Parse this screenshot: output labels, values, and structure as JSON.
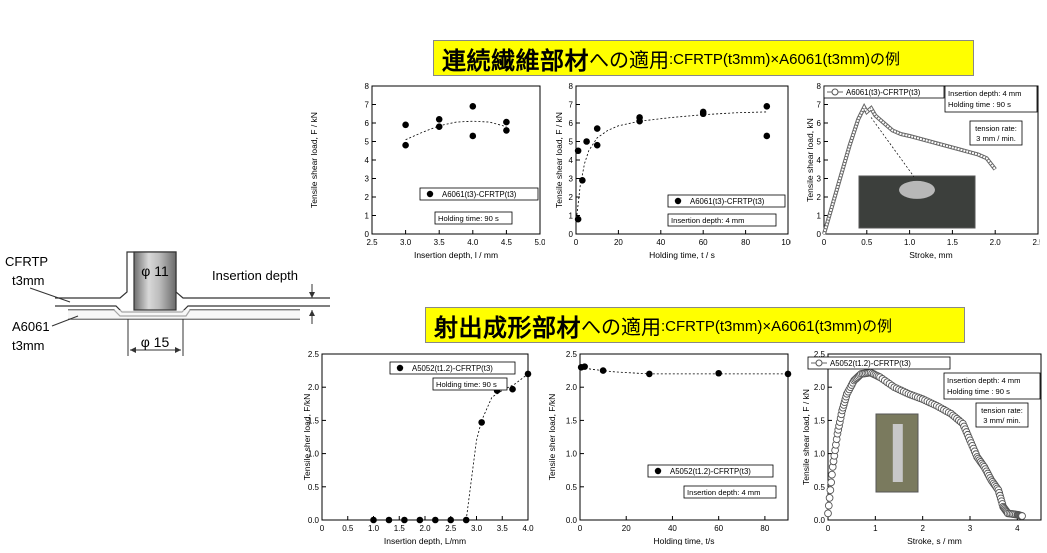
{
  "banner_top": {
    "main": "連続繊維部材",
    "particle": "への適用",
    "sub": ":CFRTP(t3mm)×A6061(t3mm)の例"
  },
  "banner_bottom": {
    "main": "射出成形部材",
    "particle": "への適用",
    "sub": ":CFRTP(t3mm)×A6061(t3mm)の例"
  },
  "diagram": {
    "label_cfrtp": "CFRTP",
    "label_cfrtp_t": "t3mm",
    "label_a6061": "A6061",
    "label_a6061_t": "t3mm",
    "label_phi11": "φ 11",
    "label_phi15": "φ 15",
    "label_insertion": "Insertion depth"
  },
  "chart_data": [
    {
      "type": "scatter",
      "ylabel": "Tensile shear load, F / kN",
      "xlabel": "Insertion depth, l / mm",
      "xlim": [
        2.5,
        5.0
      ],
      "ylim": [
        0,
        8
      ],
      "xticks": [
        "2.5",
        "3.0",
        "3.5",
        "4.0",
        "4.5",
        "5.0"
      ],
      "yticks": [
        "0",
        "1",
        "2",
        "3",
        "4",
        "5",
        "6",
        "7",
        "8"
      ],
      "series": [
        {
          "name": "A6061(t3)-CFRTP(t3)",
          "points": [
            [
              3.0,
              5.9
            ],
            [
              3.0,
              4.8
            ],
            [
              3.5,
              6.2
            ],
            [
              3.5,
              5.8
            ],
            [
              4.0,
              6.9
            ],
            [
              4.0,
              5.3
            ],
            [
              4.5,
              6.05
            ],
            [
              4.5,
              5.6
            ]
          ]
        }
      ],
      "trend": [
        [
          3.0,
          5.1
        ],
        [
          3.25,
          5.5
        ],
        [
          3.5,
          5.85
        ],
        [
          3.75,
          6.05
        ],
        [
          4.0,
          6.1
        ],
        [
          4.25,
          6.05
        ],
        [
          4.5,
          5.8
        ]
      ],
      "annotations": [
        "Holding time: 90 s"
      ]
    },
    {
      "type": "scatter",
      "ylabel": "Tensile shear load, F / kN",
      "xlabel": "Holding time, t / s",
      "xlim": [
        0,
        100
      ],
      "ylim": [
        0,
        8
      ],
      "xticks": [
        "0",
        "20",
        "40",
        "60",
        "80",
        "100"
      ],
      "yticks": [
        "0",
        "1",
        "2",
        "3",
        "4",
        "5",
        "6",
        "7",
        "8"
      ],
      "series": [
        {
          "name": "A6061(t3)-CFRTP(t3)",
          "points": [
            [
              1,
              0.8
            ],
            [
              1,
              4.5
            ],
            [
              3,
              2.9
            ],
            [
              5,
              5.0
            ],
            [
              10,
              5.7
            ],
            [
              10,
              4.8
            ],
            [
              30,
              6.3
            ],
            [
              30,
              6.1
            ],
            [
              60,
              6.6
            ],
            [
              60,
              6.5
            ],
            [
              90,
              6.9
            ],
            [
              90,
              5.3
            ]
          ]
        }
      ],
      "trend": [
        [
          0,
          0.6
        ],
        [
          2,
          2.6
        ],
        [
          4,
          3.8
        ],
        [
          6,
          4.5
        ],
        [
          10,
          5.2
        ],
        [
          15,
          5.6
        ],
        [
          20,
          5.85
        ],
        [
          30,
          6.1
        ],
        [
          45,
          6.3
        ],
        [
          60,
          6.45
        ],
        [
          75,
          6.55
        ],
        [
          90,
          6.6
        ]
      ],
      "annotations": [
        "Insertion depth: 4 mm"
      ]
    },
    {
      "type": "line",
      "ylabel": "Tensile shear load, kN",
      "xlabel": "Stroke, mm",
      "xlim": [
        0,
        2.5
      ],
      "ylim": [
        0,
        8
      ],
      "xticks": [
        "0",
        "0.5",
        "1.0",
        "1.5",
        "2.0",
        "2.5"
      ],
      "yticks": [
        "0",
        "1",
        "2",
        "3",
        "4",
        "5",
        "6",
        "7",
        "8"
      ],
      "series": [
        {
          "name": "A6061(t3)-CFRTP(t3)",
          "points": [
            [
              0,
              0
            ],
            [
              0.1,
              1.6
            ],
            [
              0.2,
              3.2
            ],
            [
              0.3,
              4.8
            ],
            [
              0.4,
              6.2
            ],
            [
              0.47,
              6.85
            ],
            [
              0.5,
              6.6
            ],
            [
              0.55,
              6.8
            ],
            [
              0.6,
              6.4
            ],
            [
              0.7,
              6.0
            ],
            [
              0.8,
              5.6
            ],
            [
              0.9,
              5.4
            ],
            [
              1.0,
              5.3
            ],
            [
              1.2,
              5.05
            ],
            [
              1.4,
              4.8
            ],
            [
              1.6,
              4.55
            ],
            [
              1.8,
              4.3
            ],
            [
              1.9,
              4.1
            ],
            [
              2.0,
              3.5
            ]
          ]
        }
      ],
      "annotations": [
        "Insertion depth: 4 mm",
        "Holding time   : 90 s",
        "tension rate:",
        "3 mm / min."
      ]
    },
    {
      "type": "scatter",
      "ylabel": "Tensile sher load, F/kN",
      "xlabel": "Insertion depth, L/mm",
      "xlim": [
        0,
        4.0
      ],
      "ylim": [
        0,
        2.5
      ],
      "xticks": [
        "0",
        "0.5",
        "1.0",
        "1.5",
        "2.0",
        "2.5",
        "3.0",
        "3.5",
        "4.0"
      ],
      "yticks": [
        "0.0",
        "0.5",
        "1.0",
        "1.5",
        "2.0",
        "2.5"
      ],
      "series": [
        {
          "name": "A5052(t1.2)-CFRTP(t3)",
          "points": [
            [
              1.0,
              0
            ],
            [
              1.3,
              0
            ],
            [
              1.6,
              0
            ],
            [
              1.9,
              0
            ],
            [
              2.2,
              0
            ],
            [
              2.5,
              0
            ],
            [
              2.8,
              0
            ],
            [
              3.1,
              1.47
            ],
            [
              3.4,
              1.95
            ],
            [
              3.7,
              1.97
            ],
            [
              4.0,
              2.2
            ]
          ]
        }
      ],
      "trend": [
        [
          2.8,
          0
        ],
        [
          2.9,
          0.6
        ],
        [
          3.0,
          1.2
        ],
        [
          3.1,
          1.5
        ],
        [
          3.3,
          1.85
        ],
        [
          3.5,
          1.95
        ],
        [
          3.75,
          2.05
        ],
        [
          4.0,
          2.2
        ]
      ],
      "annotations": [
        "Holding time: 90 s"
      ]
    },
    {
      "type": "scatter",
      "ylabel": "Tensile sher load, F/kN",
      "xlabel": "Holding time, t/s",
      "xlim": [
        0,
        90
      ],
      "ylim": [
        0,
        2.5
      ],
      "xticks": [
        "0",
        "20",
        "40",
        "60",
        "80"
      ],
      "yticks": [
        "0.0",
        "0.5",
        "1.0",
        "1.5",
        "2.0",
        "2.5"
      ],
      "series": [
        {
          "name": "A5052(t1.2)-CFRTP(t3)",
          "points": [
            [
              0.5,
              2.3
            ],
            [
              2,
              2.31
            ],
            [
              10,
              2.25
            ],
            [
              30,
              2.2
            ],
            [
              60,
              2.21
            ],
            [
              90,
              2.2
            ]
          ]
        }
      ],
      "trend": [
        [
          0.5,
          2.3
        ],
        [
          5,
          2.27
        ],
        [
          15,
          2.23
        ],
        [
          30,
          2.2
        ],
        [
          60,
          2.2
        ],
        [
          90,
          2.2
        ]
      ],
      "annotations": [
        "Insertion depth: 4 mm"
      ]
    },
    {
      "type": "line",
      "ylabel": "Tensile shear load, F / kN",
      "xlabel": "Stroke, s / mm",
      "xlim": [
        0,
        4.5
      ],
      "ylim": [
        0,
        2.5
      ],
      "xticks": [
        "0",
        "1",
        "2",
        "3",
        "4"
      ],
      "yticks": [
        "0.0",
        "0.5",
        "1.0",
        "1.5",
        "2.0",
        "2.5"
      ],
      "series": [
        {
          "name": "A5052(t1.2)-CFRTP(t3)",
          "points": [
            [
              0,
              0.1
            ],
            [
              0.1,
              0.8
            ],
            [
              0.2,
              1.3
            ],
            [
              0.3,
              1.65
            ],
            [
              0.4,
              1.9
            ],
            [
              0.55,
              2.1
            ],
            [
              0.7,
              2.2
            ],
            [
              0.9,
              2.22
            ],
            [
              1.1,
              2.15
            ],
            [
              1.4,
              2.0
            ],
            [
              1.7,
              1.9
            ],
            [
              2.0,
              1.82
            ],
            [
              2.3,
              1.72
            ],
            [
              2.6,
              1.6
            ],
            [
              2.85,
              1.45
            ],
            [
              3.0,
              1.2
            ],
            [
              3.15,
              0.95
            ],
            [
              3.3,
              0.8
            ],
            [
              3.45,
              0.6
            ],
            [
              3.6,
              0.45
            ],
            [
              3.7,
              0.2
            ],
            [
              3.8,
              0.1
            ],
            [
              4.0,
              0.08
            ],
            [
              4.1,
              0.06
            ]
          ]
        }
      ],
      "annotations": [
        "Insertion depth: 4 mm",
        "Holding time    : 90 s",
        "tension rate:",
        "3 mm/ min."
      ]
    }
  ]
}
